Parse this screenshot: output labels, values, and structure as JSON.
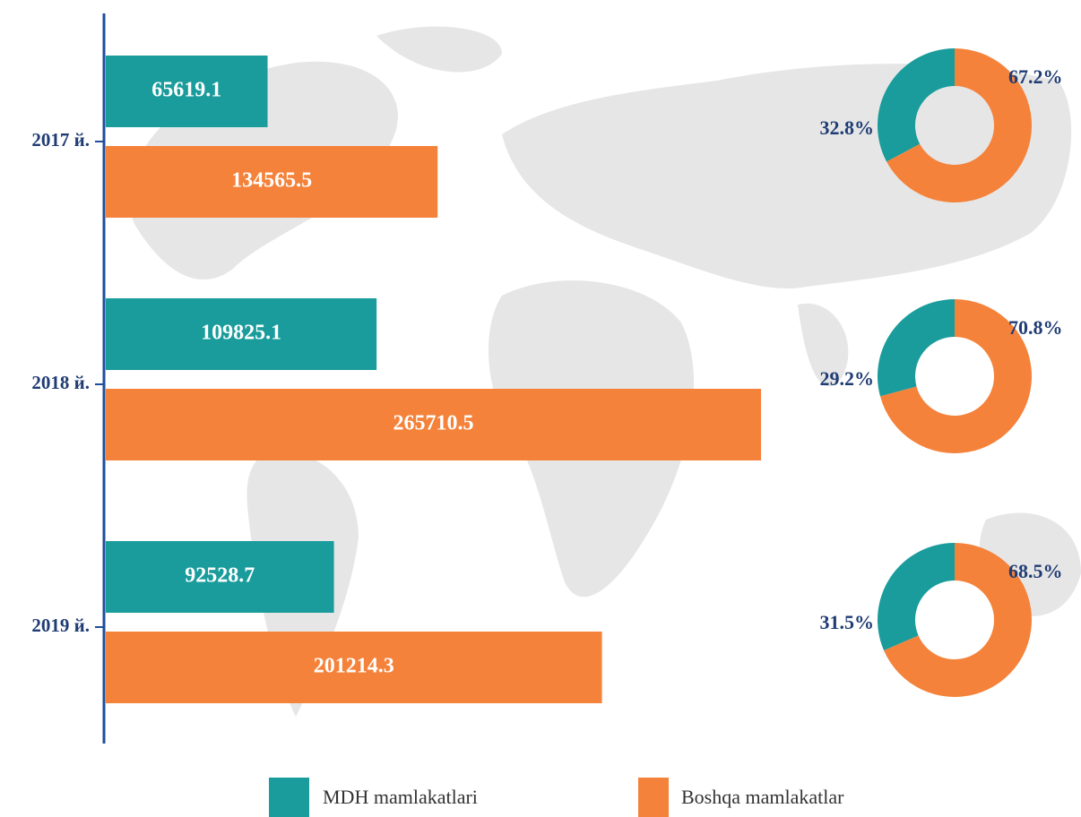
{
  "chart_data": [
    {
      "type": "bar",
      "categories": [
        "2017 й.",
        "2018 й.",
        "2019 й."
      ],
      "series": [
        {
          "name": "MDH mamlakatlari",
          "color": "#1a9c9c",
          "values": [
            65619.1,
            109825.1,
            92528.7
          ]
        },
        {
          "name": "Boshqa mamlakatlar",
          "color": "#f5823a",
          "values": [
            134565.5,
            265710.5,
            201214.3
          ]
        }
      ]
    },
    {
      "type": "pie",
      "colors": [
        "#1a9c9c",
        "#f5823a"
      ],
      "values": [
        32.8,
        67.2
      ],
      "value_labels": [
        "32.8%",
        "67.2%"
      ]
    },
    {
      "type": "pie",
      "colors": [
        "#1a9c9c",
        "#f5823a"
      ],
      "values": [
        29.2,
        70.8
      ],
      "value_labels": [
        "29.2%",
        "70.8%"
      ]
    },
    {
      "type": "pie",
      "colors": [
        "#1a9c9c",
        "#f5823a"
      ],
      "values": [
        31.5,
        68.5
      ],
      "value_labels": [
        "31.5%",
        "68.5%"
      ]
    }
  ]
}
